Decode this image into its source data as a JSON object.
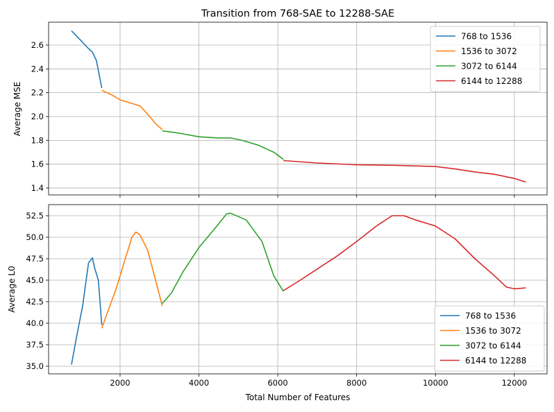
{
  "chart_data": [
    {
      "type": "line",
      "title": "Transition from 768-SAE to 12288-SAE",
      "xlabel": "",
      "ylabel": "Average MSE",
      "xlim": [
        187,
        12830
      ],
      "ylim": [
        1.342,
        2.792
      ],
      "xticks": [
        2000,
        4000,
        6000,
        8000,
        10000,
        12000
      ],
      "xtick_labels_shown": false,
      "yticks": [
        1.4,
        1.6,
        1.8,
        2.0,
        2.2,
        2.4,
        2.6
      ],
      "ytick_labels": [
        "1.4",
        "1.6",
        "1.8",
        "2.0",
        "2.2",
        "2.4",
        "2.6"
      ],
      "grid": true,
      "legend_position": "top-right",
      "series": [
        {
          "name": "768 to 1536",
          "color": "#1f77b4",
          "x": [
            768,
            1000,
            1200,
            1300,
            1400,
            1500,
            1536
          ],
          "y": [
            2.72,
            2.64,
            2.57,
            2.54,
            2.47,
            2.3,
            2.24
          ]
        },
        {
          "name": "1536 to 3072",
          "color": "#ff7f0e",
          "x": [
            1536,
            1800,
            2000,
            2300,
            2500,
            2700,
            2900,
            3072
          ],
          "y": [
            2.22,
            2.18,
            2.14,
            2.11,
            2.09,
            2.02,
            1.94,
            1.89
          ]
        },
        {
          "name": "3072 to 6144",
          "color": "#2ca02c",
          "x": [
            3072,
            3500,
            4000,
            4500,
            4800,
            5100,
            5500,
            5900,
            6144
          ],
          "y": [
            1.88,
            1.86,
            1.83,
            1.82,
            1.82,
            1.8,
            1.76,
            1.7,
            1.64
          ]
        },
        {
          "name": "6144 to 12288",
          "color": "#d62728",
          "x": [
            6144,
            7000,
            8000,
            9000,
            10000,
            10500,
            11000,
            11500,
            12000,
            12288
          ],
          "y": [
            1.63,
            1.61,
            1.595,
            1.59,
            1.58,
            1.56,
            1.535,
            1.515,
            1.48,
            1.45
          ]
        }
      ]
    },
    {
      "type": "line",
      "title": "",
      "xlabel": "Total Number of Features",
      "ylabel": "Average L0",
      "xlim": [
        187,
        12830
      ],
      "ylim": [
        34.11,
        53.79
      ],
      "xticks": [
        2000,
        4000,
        6000,
        8000,
        10000,
        12000
      ],
      "xtick_labels": [
        "2000",
        "4000",
        "6000",
        "8000",
        "10000",
        "12000"
      ],
      "yticks": [
        35.0,
        37.5,
        40.0,
        42.5,
        45.0,
        47.5,
        50.0,
        52.5
      ],
      "ytick_labels": [
        "35.0",
        "37.5",
        "40.0",
        "42.5",
        "45.0",
        "47.5",
        "50.0",
        "52.5"
      ],
      "grid": true,
      "legend_position": "bottom-right",
      "series": [
        {
          "name": "768 to 1536",
          "color": "#1f77b4",
          "x": [
            768,
            900,
            1050,
            1200,
            1300,
            1350,
            1450,
            1536
          ],
          "y": [
            35.2,
            38.5,
            42,
            47,
            47.6,
            46.5,
            45,
            39.8
          ]
        },
        {
          "name": "1536 to 3072",
          "color": "#ff7f0e",
          "x": [
            1536,
            1700,
            1900,
            2100,
            2300,
            2400,
            2500,
            2700,
            2900,
            3072
          ],
          "y": [
            39.4,
            41.5,
            44,
            47,
            50,
            50.6,
            50.3,
            48.5,
            45,
            42
          ]
        },
        {
          "name": "3072 to 6144",
          "color": "#2ca02c",
          "x": [
            3072,
            3300,
            3600,
            4000,
            4400,
            4700,
            4800,
            5200,
            5600,
            5900,
            6144
          ],
          "y": [
            42.3,
            43.5,
            46,
            48.8,
            51,
            52.7,
            52.8,
            52,
            49.5,
            45.5,
            43.7
          ]
        },
        {
          "name": "6144 to 12288",
          "color": "#d62728",
          "x": [
            6144,
            6500,
            7000,
            7500,
            8000,
            8500,
            8900,
            9200,
            9500,
            10000,
            10500,
            11000,
            11500,
            11800,
            12000,
            12288
          ],
          "y": [
            43.8,
            44.8,
            46.3,
            47.8,
            49.5,
            51.3,
            52.5,
            52.5,
            52,
            51.3,
            49.8,
            47.5,
            45.5,
            44.2,
            44,
            44.1
          ]
        }
      ]
    }
  ]
}
